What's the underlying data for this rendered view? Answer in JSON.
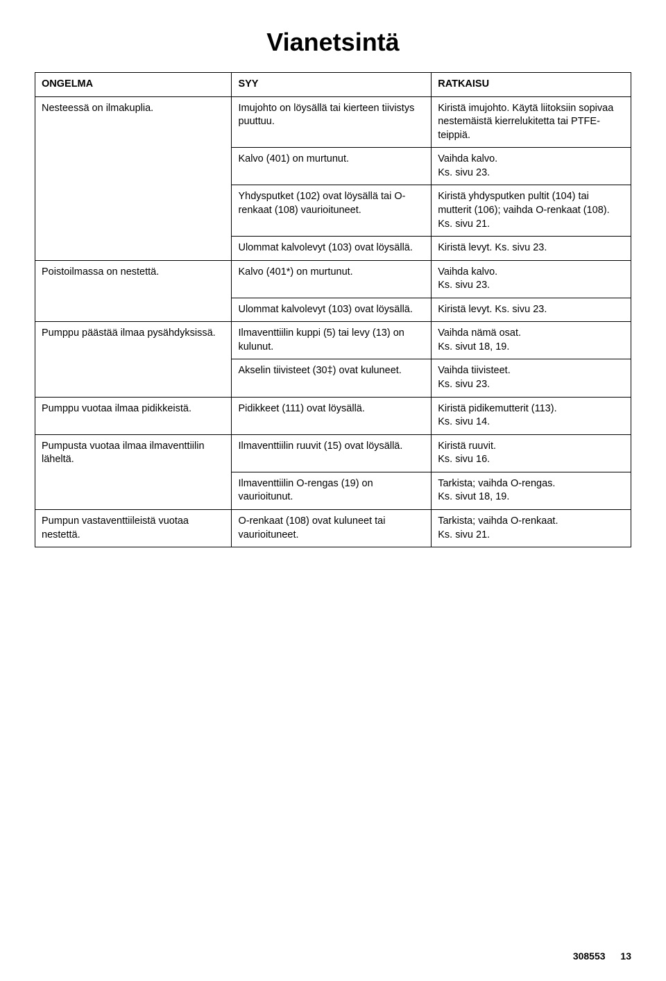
{
  "title": "Vianetsintä",
  "headers": [
    "ONGELMA",
    "SYY",
    "RATKAISU"
  ],
  "rows": [
    {
      "p": "Nesteessä on ilmakuplia.",
      "pspan": 4,
      "c": "Imujohto on löysällä tai kierteen tiivistys puuttuu.",
      "s": "Kiristä imujohto. Käytä liitoksiin sopivaa nestemäistä kierrelukitetta tai PTFE-teippiä."
    },
    {
      "c": "Kalvo (401) on murtunut.",
      "s": "Vaihda kalvo.\nKs. sivu 23."
    },
    {
      "c": "Yhdysputket (102) ovat löysällä tai O-renkaat (108) vaurioituneet.",
      "s": "Kiristä yhdysputken pultit (104) tai mutterit (106); vaihda O-renkaat (108).\nKs. sivu 21."
    },
    {
      "c": "Ulommat kalvolevyt (103) ovat löysällä.",
      "s": "Kiristä levyt. Ks. sivu 23."
    },
    {
      "p": "Poistoilmassa on nestettä.",
      "pspan": 2,
      "c": "Kalvo (401*) on murtunut.",
      "s": "Vaihda kalvo.\nKs. sivu 23."
    },
    {
      "c": "Ulommat kalvolevyt (103) ovat löysällä.",
      "s": "Kiristä levyt. Ks. sivu 23."
    },
    {
      "p": "Pumppu päästää ilmaa pysähdyksissä.",
      "pspan": 2,
      "c": "Ilmaventtiilin kuppi (5) tai levy (13) on kulunut.",
      "s": "Vaihda nämä osat.\nKs. sivut 18, 19."
    },
    {
      "c": "Akselin tiivisteet (30‡) ovat kuluneet.",
      "s": "Vaihda tiivisteet.\nKs. sivu 23."
    },
    {
      "p": "Pumppu vuotaa ilmaa pidikkeistä.",
      "pspan": 1,
      "c": "Pidikkeet (111) ovat löysällä.",
      "s": "Kiristä pidikemutterit (113).\nKs. sivu 14."
    },
    {
      "p": "Pumpusta vuotaa ilmaa ilmaventtiilin läheltä.",
      "pspan": 2,
      "c": "Ilmaventtiilin ruuvit (15) ovat löysällä.",
      "s": "Kiristä ruuvit.\nKs. sivu 16."
    },
    {
      "c": "Ilmaventtiilin O-rengas (19) on vaurioitunut.",
      "s": "Tarkista; vaihda O-rengas.\nKs. sivut 18, 19."
    },
    {
      "p": "Pumpun vastaventtiileistä vuotaa nestettä.",
      "pspan": 1,
      "c": "O-renkaat (108) ovat kuluneet tai vaurioituneet.",
      "s": "Tarkista; vaihda O-renkaat.\nKs. sivu 21."
    }
  ],
  "footer": {
    "doc": "308553",
    "page": "13"
  }
}
